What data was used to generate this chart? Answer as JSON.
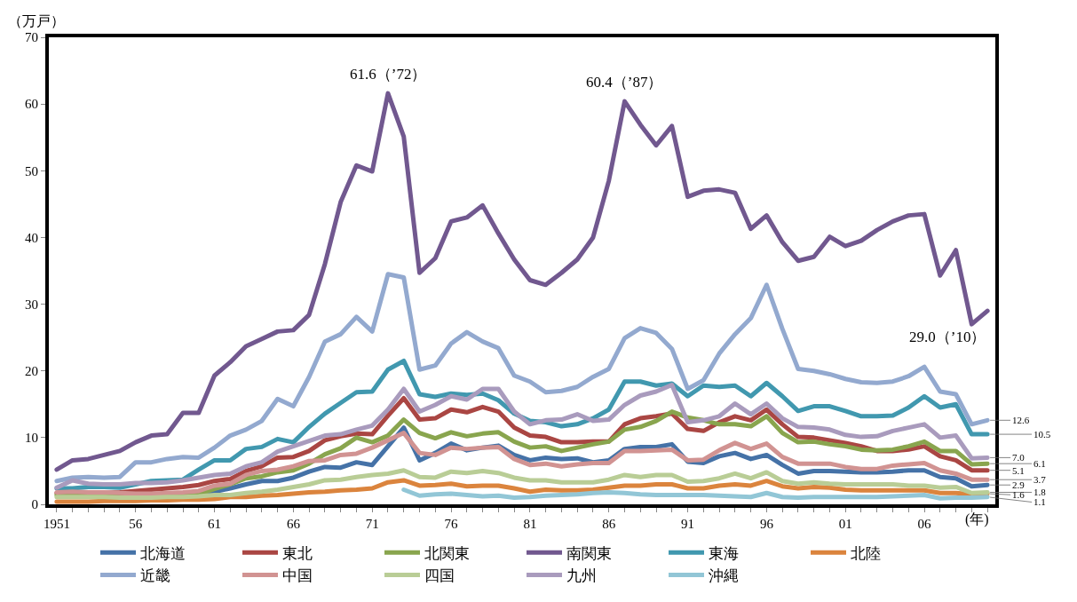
{
  "chart_data": {
    "type": "line",
    "ylabel": "（万戸）",
    "xlabel": "(年)",
    "x": [
      1951,
      1952,
      1953,
      1954,
      1955,
      1956,
      1957,
      1958,
      1959,
      1960,
      1961,
      1962,
      1963,
      1964,
      1965,
      1966,
      1967,
      1968,
      1969,
      1970,
      1971,
      1972,
      1973,
      1974,
      1975,
      1976,
      1977,
      1978,
      1979,
      1980,
      1981,
      1982,
      1983,
      1984,
      1985,
      1986,
      1987,
      1988,
      1989,
      1990,
      1991,
      1992,
      1993,
      1994,
      1995,
      1996,
      1997,
      1998,
      1999,
      2000,
      2001,
      2002,
      2003,
      2004,
      2005,
      2006,
      2007,
      2008,
      2009,
      2010
    ],
    "xlim": [
      1950.5,
      2010.5
    ],
    "xticks": [
      {
        "value": 1951,
        "label": "1951"
      },
      {
        "value": 1952,
        "label": null
      },
      {
        "value": 1953,
        "label": null
      },
      {
        "value": 1954,
        "label": null
      },
      {
        "value": 1955,
        "label": null
      },
      {
        "value": 1956,
        "label": "56"
      },
      {
        "value": 1957,
        "label": null
      },
      {
        "value": 1958,
        "label": null
      },
      {
        "value": 1959,
        "label": null
      },
      {
        "value": 1960,
        "label": null
      },
      {
        "value": 1961,
        "label": "61"
      },
      {
        "value": 1962,
        "label": null
      },
      {
        "value": 1963,
        "label": null
      },
      {
        "value": 1964,
        "label": null
      },
      {
        "value": 1965,
        "label": null
      },
      {
        "value": 1966,
        "label": "66"
      },
      {
        "value": 1967,
        "label": null
      },
      {
        "value": 1968,
        "label": null
      },
      {
        "value": 1969,
        "label": null
      },
      {
        "value": 1970,
        "label": null
      },
      {
        "value": 1971,
        "label": "71"
      },
      {
        "value": 1972,
        "label": null
      },
      {
        "value": 1973,
        "label": null
      },
      {
        "value": 1974,
        "label": null
      },
      {
        "value": 1975,
        "label": null
      },
      {
        "value": 1976,
        "label": "76"
      },
      {
        "value": 1977,
        "label": null
      },
      {
        "value": 1978,
        "label": null
      },
      {
        "value": 1979,
        "label": null
      },
      {
        "value": 1980,
        "label": null
      },
      {
        "value": 1981,
        "label": "81"
      },
      {
        "value": 1982,
        "label": null
      },
      {
        "value": 1983,
        "label": null
      },
      {
        "value": 1984,
        "label": null
      },
      {
        "value": 1985,
        "label": null
      },
      {
        "value": 1986,
        "label": "86"
      },
      {
        "value": 1987,
        "label": null
      },
      {
        "value": 1988,
        "label": null
      },
      {
        "value": 1989,
        "label": null
      },
      {
        "value": 1990,
        "label": null
      },
      {
        "value": 1991,
        "label": "91"
      },
      {
        "value": 1992,
        "label": null
      },
      {
        "value": 1993,
        "label": null
      },
      {
        "value": 1994,
        "label": null
      },
      {
        "value": 1995,
        "label": null
      },
      {
        "value": 1996,
        "label": "96"
      },
      {
        "value": 1997,
        "label": null
      },
      {
        "value": 1998,
        "label": null
      },
      {
        "value": 1999,
        "label": null
      },
      {
        "value": 2000,
        "label": null
      },
      {
        "value": 2001,
        "label": "01"
      },
      {
        "value": 2002,
        "label": null
      },
      {
        "value": 2003,
        "label": null
      },
      {
        "value": 2004,
        "label": null
      },
      {
        "value": 2005,
        "label": null
      },
      {
        "value": 2006,
        "label": "06"
      },
      {
        "value": 2007,
        "label": null
      },
      {
        "value": 2008,
        "label": null
      },
      {
        "value": 2009,
        "label": null
      },
      {
        "value": 2010,
        "label": null
      }
    ],
    "ylim": [
      0,
      70
    ],
    "yticks": [
      0,
      10,
      20,
      30,
      40,
      50,
      60,
      70
    ],
    "legend": "bottom",
    "marker": "none",
    "line_style": "solid",
    "annotations": [
      {
        "text": "61.6（’72）",
        "x": 1972,
        "y": 61.6
      },
      {
        "text": "60.4（’87）",
        "x": 1987,
        "y": 60.4
      },
      {
        "text": "29.0（’10）",
        "x": 2010,
        "y": 29.0
      }
    ],
    "series": [
      {
        "name": "北海道",
        "color": "#4572a7",
        "values": [
          null,
          null,
          null,
          null,
          null,
          null,
          null,
          null,
          null,
          1.5,
          1.9,
          2.4,
          3.0,
          3.5,
          3.5,
          4.0,
          4.9,
          5.6,
          5.5,
          6.3,
          5.9,
          8.7,
          11.5,
          6.6,
          7.7,
          9.1,
          8.1,
          8.5,
          8.8,
          7.4,
          6.6,
          7.0,
          6.8,
          6.9,
          6.3,
          6.6,
          8.3,
          8.6,
          8.6,
          9.0,
          6.4,
          6.2,
          7.2,
          7.7,
          6.8,
          7.4,
          5.9,
          4.6,
          5.0,
          5.0,
          4.9,
          4.8,
          4.8,
          4.9,
          5.1,
          5.1,
          4.1,
          3.9,
          2.7,
          2.9
        ],
        "value_labels": [
          null,
          null,
          null,
          null,
          null,
          null,
          null,
          null,
          null,
          null,
          null,
          null,
          null,
          null,
          null,
          null,
          null,
          null,
          null,
          null,
          null,
          null,
          null,
          null,
          null,
          null,
          null,
          null,
          null,
          null,
          null,
          null,
          null,
          null,
          null,
          null,
          null,
          null,
          null,
          null,
          null,
          null,
          null,
          null,
          null,
          null,
          null,
          null,
          null,
          null,
          null,
          null,
          null,
          null,
          null,
          null,
          null,
          null,
          null,
          "2.9"
        ]
      },
      {
        "name": "東北",
        "color": "#aa4643",
        "values": [
          1.7,
          1.7,
          1.7,
          1.7,
          1.8,
          2.0,
          2.2,
          2.4,
          2.6,
          2.9,
          3.5,
          3.8,
          5.0,
          5.7,
          7.0,
          7.1,
          8.0,
          9.6,
          10.2,
          10.6,
          10.5,
          13.3,
          15.9,
          12.7,
          12.9,
          14.2,
          13.8,
          14.6,
          13.9,
          11.5,
          10.3,
          10.1,
          9.3,
          9.3,
          9.4,
          9.4,
          12.0,
          12.9,
          13.2,
          13.6,
          11.3,
          11.0,
          12.3,
          13.2,
          12.6,
          14.2,
          12.0,
          10.1,
          10.0,
          9.6,
          9.2,
          8.7,
          8.0,
          8.0,
          8.2,
          8.7,
          7.2,
          6.6,
          5.1,
          5.1
        ],
        "value_labels": [
          null,
          null,
          null,
          null,
          null,
          null,
          null,
          null,
          null,
          null,
          null,
          null,
          null,
          null,
          null,
          null,
          null,
          null,
          null,
          null,
          null,
          null,
          null,
          null,
          null,
          null,
          null,
          null,
          null,
          null,
          null,
          null,
          null,
          null,
          null,
          null,
          null,
          null,
          null,
          null,
          null,
          null,
          null,
          null,
          null,
          null,
          null,
          null,
          null,
          null,
          null,
          null,
          null,
          null,
          null,
          null,
          null,
          null,
          null,
          "5.1"
        ]
      },
      {
        "name": "北関東",
        "color": "#89a54e",
        "values": [
          1.4,
          1.4,
          1.4,
          1.4,
          1.3,
          1.3,
          1.3,
          1.3,
          1.4,
          1.5,
          2.3,
          3.0,
          3.9,
          4.2,
          4.8,
          5.1,
          6.1,
          7.5,
          8.4,
          10.0,
          9.3,
          10.3,
          12.7,
          10.7,
          9.9,
          10.8,
          10.2,
          10.6,
          10.8,
          9.4,
          8.5,
          8.7,
          8.0,
          8.5,
          9.0,
          9.4,
          11.2,
          11.6,
          12.5,
          13.9,
          13.0,
          12.6,
          12.0,
          12.0,
          11.7,
          13.2,
          10.7,
          9.3,
          9.4,
          9.0,
          8.7,
          8.2,
          8.1,
          8.2,
          8.7,
          9.4,
          8.0,
          8.0,
          6.0,
          6.1
        ],
        "value_labels": [
          null,
          null,
          null,
          null,
          null,
          null,
          null,
          null,
          null,
          null,
          null,
          null,
          null,
          null,
          null,
          null,
          null,
          null,
          null,
          null,
          null,
          null,
          null,
          null,
          null,
          null,
          null,
          null,
          null,
          null,
          null,
          null,
          null,
          null,
          null,
          null,
          null,
          null,
          null,
          null,
          null,
          null,
          null,
          null,
          null,
          null,
          null,
          null,
          null,
          null,
          null,
          null,
          null,
          null,
          null,
          null,
          null,
          null,
          null,
          "6.1"
        ]
      },
      {
        "name": "南関東",
        "color": "#71588f",
        "values": [
          5.2,
          6.6,
          6.8,
          7.4,
          8.0,
          9.3,
          10.3,
          10.5,
          13.7,
          13.7,
          19.3,
          21.3,
          23.7,
          24.8,
          25.9,
          26.1,
          28.4,
          36.0,
          45.3,
          50.8,
          49.9,
          61.6,
          55.1,
          34.7,
          36.9,
          42.4,
          43.0,
          44.8,
          40.6,
          36.7,
          33.6,
          32.9,
          34.7,
          36.7,
          40.0,
          48.5,
          60.4,
          56.9,
          53.8,
          56.7,
          46.1,
          47.0,
          47.2,
          46.7,
          41.3,
          43.3,
          39.3,
          36.5,
          37.1,
          40.1,
          38.7,
          39.5,
          41.1,
          42.4,
          43.3,
          43.5,
          34.3,
          38.1,
          27.0,
          29.0
        ]
      },
      {
        "name": "東海",
        "color": "#4198af",
        "values": [
          2.4,
          2.4,
          2.6,
          2.6,
          2.5,
          3.0,
          3.5,
          3.6,
          3.7,
          5.2,
          6.6,
          6.6,
          8.3,
          8.6,
          9.8,
          9.3,
          11.6,
          13.6,
          15.2,
          16.8,
          16.9,
          20.2,
          21.5,
          16.5,
          16.1,
          16.6,
          16.4,
          16.6,
          15.6,
          13.6,
          12.5,
          12.3,
          11.7,
          12.0,
          12.9,
          14.2,
          18.4,
          18.4,
          17.8,
          18.1,
          16.2,
          17.8,
          17.6,
          17.8,
          16.2,
          18.2,
          16.2,
          14.0,
          14.7,
          14.7,
          14.0,
          13.2,
          13.2,
          13.3,
          14.5,
          16.2,
          14.5,
          15.0,
          10.5,
          10.5
        ],
        "value_labels": [
          null,
          null,
          null,
          null,
          null,
          null,
          null,
          null,
          null,
          null,
          null,
          null,
          null,
          null,
          null,
          null,
          null,
          null,
          null,
          null,
          null,
          null,
          null,
          null,
          null,
          null,
          null,
          null,
          null,
          null,
          null,
          null,
          null,
          null,
          null,
          null,
          null,
          null,
          null,
          null,
          null,
          null,
          null,
          null,
          null,
          null,
          null,
          null,
          null,
          null,
          null,
          null,
          null,
          null,
          null,
          null,
          null,
          null,
          null,
          "10.5"
        ]
      },
      {
        "name": "北陸",
        "color": "#db843d",
        "values": [
          0.4,
          0.4,
          0.4,
          0.5,
          0.5,
          0.5,
          0.6,
          0.6,
          0.7,
          0.7,
          0.8,
          1.1,
          1.1,
          1.3,
          1.4,
          1.6,
          1.8,
          1.9,
          2.1,
          2.2,
          2.4,
          3.3,
          3.6,
          2.8,
          2.9,
          3.1,
          2.7,
          2.8,
          2.8,
          2.4,
          1.9,
          2.2,
          2.1,
          2.1,
          2.2,
          2.5,
          2.8,
          2.8,
          3.0,
          3.0,
          2.4,
          2.4,
          2.8,
          3.0,
          2.8,
          3.5,
          2.7,
          2.4,
          2.6,
          2.5,
          2.2,
          2.1,
          2.1,
          2.1,
          2.1,
          2.1,
          1.7,
          1.7,
          1.5,
          1.6
        ],
        "value_labels": [
          null,
          null,
          null,
          null,
          null,
          null,
          null,
          null,
          null,
          null,
          null,
          null,
          null,
          null,
          null,
          null,
          null,
          null,
          null,
          null,
          null,
          null,
          null,
          null,
          null,
          null,
          null,
          null,
          null,
          null,
          null,
          null,
          null,
          null,
          null,
          null,
          null,
          null,
          null,
          null,
          null,
          null,
          null,
          null,
          null,
          null,
          null,
          null,
          null,
          null,
          null,
          null,
          null,
          null,
          null,
          null,
          null,
          null,
          null,
          "1.6"
        ]
      },
      {
        "name": "近畿",
        "color": "#93a9cf",
        "values": [
          3.5,
          4.0,
          4.1,
          4.0,
          4.1,
          6.3,
          6.3,
          6.8,
          7.1,
          7.0,
          8.5,
          10.3,
          11.2,
          12.5,
          15.8,
          14.7,
          19.1,
          24.4,
          25.5,
          28.1,
          25.9,
          34.5,
          34.0,
          20.2,
          20.8,
          24.1,
          25.8,
          24.4,
          23.4,
          19.3,
          18.4,
          16.8,
          17.0,
          17.6,
          19.1,
          20.3,
          24.9,
          26.4,
          25.7,
          23.3,
          17.3,
          18.6,
          22.6,
          25.5,
          27.9,
          32.9,
          26.3,
          20.3,
          20.0,
          19.5,
          18.8,
          18.3,
          18.2,
          18.4,
          19.2,
          20.6,
          16.9,
          16.5,
          12.0,
          12.6
        ],
        "value_labels": [
          null,
          null,
          null,
          null,
          null,
          null,
          null,
          null,
          null,
          null,
          null,
          null,
          null,
          null,
          null,
          null,
          null,
          null,
          null,
          null,
          null,
          null,
          null,
          null,
          null,
          null,
          null,
          null,
          null,
          null,
          null,
          null,
          null,
          null,
          null,
          null,
          null,
          null,
          null,
          null,
          null,
          null,
          null,
          null,
          null,
          null,
          null,
          null,
          null,
          null,
          null,
          null,
          null,
          null,
          null,
          null,
          null,
          null,
          null,
          "12.6"
        ]
      },
      {
        "name": "中国",
        "color": "#d19392",
        "values": [
          1.8,
          1.9,
          1.8,
          1.8,
          1.7,
          1.6,
          1.6,
          1.7,
          1.8,
          2.0,
          2.8,
          3.1,
          4.4,
          5.0,
          5.2,
          5.7,
          6.5,
          6.6,
          7.4,
          7.6,
          8.5,
          9.6,
          10.7,
          7.7,
          7.4,
          8.5,
          8.3,
          8.5,
          8.6,
          6.8,
          5.9,
          6.1,
          5.7,
          6.0,
          6.2,
          6.2,
          8.0,
          8.0,
          8.1,
          8.2,
          6.6,
          6.7,
          8.1,
          9.2,
          8.3,
          9.1,
          7.1,
          6.1,
          6.1,
          6.1,
          5.6,
          5.3,
          5.3,
          5.8,
          6.0,
          6.2,
          5.1,
          4.6,
          3.7,
          3.7
        ],
        "value_labels": [
          null,
          null,
          null,
          null,
          null,
          null,
          null,
          null,
          null,
          null,
          null,
          null,
          null,
          null,
          null,
          null,
          null,
          null,
          null,
          null,
          null,
          null,
          null,
          null,
          null,
          null,
          null,
          null,
          null,
          null,
          null,
          null,
          null,
          null,
          null,
          null,
          null,
          null,
          null,
          null,
          null,
          null,
          null,
          null,
          null,
          null,
          null,
          null,
          null,
          null,
          null,
          null,
          null,
          null,
          null,
          null,
          null,
          null,
          null,
          "3.7"
        ]
      },
      {
        "name": "四国",
        "color": "#b9cd96",
        "values": [
          1.1,
          1.1,
          1.1,
          1.1,
          1.0,
          1.0,
          1.0,
          1.1,
          1.1,
          1.2,
          1.4,
          1.4,
          1.7,
          1.9,
          2.2,
          2.6,
          3.0,
          3.6,
          3.7,
          4.1,
          4.4,
          4.6,
          5.1,
          4.1,
          4.0,
          4.9,
          4.7,
          5.0,
          4.7,
          4.0,
          3.6,
          3.6,
          3.3,
          3.3,
          3.3,
          3.7,
          4.4,
          4.1,
          4.4,
          4.4,
          3.4,
          3.5,
          3.9,
          4.6,
          3.9,
          4.8,
          3.5,
          3.1,
          3.3,
          3.1,
          3.0,
          3.0,
          3.0,
          3.0,
          2.8,
          2.8,
          2.5,
          2.6,
          1.7,
          1.8
        ],
        "value_labels": [
          null,
          null,
          null,
          null,
          null,
          null,
          null,
          null,
          null,
          null,
          null,
          null,
          null,
          null,
          null,
          null,
          null,
          null,
          null,
          null,
          null,
          null,
          null,
          null,
          null,
          null,
          null,
          null,
          null,
          null,
          null,
          null,
          null,
          null,
          null,
          null,
          null,
          null,
          null,
          null,
          null,
          null,
          null,
          null,
          null,
          null,
          null,
          null,
          null,
          null,
          null,
          null,
          null,
          null,
          null,
          null,
          null,
          null,
          null,
          "1.8"
        ]
      },
      {
        "name": "九州",
        "color": "#a99bbd",
        "values": [
          2.5,
          3.6,
          3.1,
          3.0,
          3.0,
          3.2,
          3.2,
          3.3,
          3.6,
          4.0,
          4.4,
          4.6,
          5.7,
          6.3,
          7.9,
          8.7,
          9.5,
          10.3,
          10.5,
          11.2,
          11.8,
          14.2,
          17.3,
          13.9,
          14.9,
          16.2,
          15.7,
          17.3,
          17.3,
          13.9,
          12.0,
          12.6,
          12.7,
          13.5,
          12.5,
          12.7,
          14.9,
          16.3,
          16.9,
          17.9,
          12.3,
          12.6,
          13.2,
          15.1,
          13.5,
          15.1,
          12.9,
          11.6,
          11.5,
          11.2,
          10.4,
          10.1,
          10.2,
          11.0,
          11.5,
          12.0,
          10.0,
          10.3,
          6.9,
          7.0
        ],
        "value_labels": [
          null,
          null,
          null,
          null,
          null,
          null,
          null,
          null,
          null,
          null,
          null,
          null,
          null,
          null,
          null,
          null,
          null,
          null,
          null,
          null,
          null,
          null,
          null,
          null,
          null,
          null,
          null,
          null,
          null,
          null,
          null,
          null,
          null,
          null,
          null,
          null,
          null,
          null,
          null,
          null,
          null,
          null,
          null,
          null,
          null,
          null,
          null,
          null,
          null,
          null,
          null,
          null,
          null,
          null,
          null,
          null,
          null,
          null,
          null,
          "7.0"
        ]
      },
      {
        "name": "沖縄",
        "color": "#92c6d6",
        "values": [
          null,
          null,
          null,
          null,
          null,
          null,
          null,
          null,
          null,
          null,
          null,
          null,
          null,
          null,
          null,
          null,
          null,
          null,
          null,
          null,
          null,
          null,
          2.2,
          1.3,
          1.5,
          1.6,
          1.4,
          1.2,
          1.3,
          1.0,
          1.1,
          1.3,
          1.4,
          1.5,
          1.7,
          1.8,
          1.7,
          1.5,
          1.4,
          1.4,
          1.4,
          1.4,
          1.3,
          1.2,
          1.1,
          1.7,
          1.1,
          1.0,
          1.1,
          1.1,
          1.1,
          1.1,
          1.1,
          1.2,
          1.3,
          1.4,
          0.9,
          1.0,
          1.0,
          1.1
        ],
        "value_labels": [
          null,
          null,
          null,
          null,
          null,
          null,
          null,
          null,
          null,
          null,
          null,
          null,
          null,
          null,
          null,
          null,
          null,
          null,
          null,
          null,
          null,
          null,
          null,
          null,
          null,
          null,
          null,
          null,
          null,
          null,
          null,
          null,
          null,
          null,
          null,
          null,
          null,
          null,
          null,
          null,
          null,
          null,
          null,
          null,
          null,
          null,
          null,
          null,
          null,
          null,
          null,
          null,
          null,
          null,
          null,
          null,
          null,
          null,
          null,
          "1.1"
        ]
      }
    ]
  }
}
